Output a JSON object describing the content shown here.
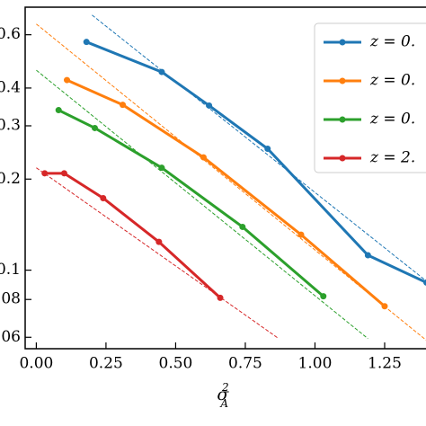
{
  "chart_data": {
    "type": "line",
    "x_label": {
      "base": "σ",
      "sub": "A",
      "sup": "2"
    },
    "log_y": true,
    "xlim": [
      -0.04,
      1.45
    ],
    "ylim": [
      0.055,
      0.74
    ],
    "xticks": [
      {
        "value": 0,
        "label": "0.00"
      },
      {
        "value": 0.25,
        "label": "0.25"
      },
      {
        "value": 0.5,
        "label": "0.50"
      },
      {
        "value": 0.75,
        "label": "0.75"
      },
      {
        "value": 1,
        "label": "1.00"
      },
      {
        "value": 1.25,
        "label": "1.25"
      }
    ],
    "yticks": [
      {
        "value": 0.06,
        "label": "0.06"
      },
      {
        "value": 0.08,
        "label": "0.08"
      },
      {
        "value": 0.1,
        "label": "0.1"
      },
      {
        "value": 0.2,
        "label": "0.2"
      },
      {
        "value": 0.3,
        "label": "0.3"
      },
      {
        "value": 0.4,
        "label": "0.4"
      },
      {
        "value": 0.6,
        "label": "0.6"
      }
    ],
    "series": [
      {
        "name": "z = 0.",
        "color": "#1f77b4",
        "x": [
          0.18,
          0.45,
          0.62,
          0.83,
          1.19,
          1.4
        ],
        "values": [
          0.568,
          0.452,
          0.35,
          0.252,
          0.112,
          0.091
        ]
      },
      {
        "name": "z = 0.",
        "color": "#ff7f0e",
        "x": [
          0.11,
          0.31,
          0.6,
          0.95,
          1.25
        ],
        "values": [
          0.425,
          0.352,
          0.236,
          0.131,
          0.076
        ]
      },
      {
        "name": "z = 0.",
        "color": "#2ca02c",
        "x": [
          0.08,
          0.21,
          0.45,
          0.74,
          1.03
        ],
        "values": [
          0.338,
          0.295,
          0.218,
          0.139,
          0.082
        ]
      },
      {
        "name": "z = 2.",
        "color": "#d62728",
        "x": [
          0.03,
          0.1,
          0.24,
          0.44,
          0.66
        ],
        "values": [
          0.209,
          0.209,
          0.173,
          0.124,
          0.081
        ]
      }
    ],
    "fit_lines": [
      {
        "color": "#1f77b4",
        "x": [
          0.2,
          1.4
        ],
        "values": [
          0.697,
          0.092
        ]
      },
      {
        "color": "#ff7f0e",
        "x": [
          0.0,
          1.4
        ],
        "values": [
          0.651,
          0.0586
        ]
      },
      {
        "color": "#2ca02c",
        "x": [
          0.0,
          1.19
        ],
        "values": [
          0.458,
          0.0594
        ]
      },
      {
        "color": "#d62728",
        "x": [
          0.0,
          0.87
        ],
        "values": [
          0.218,
          0.0594
        ]
      }
    ]
  }
}
